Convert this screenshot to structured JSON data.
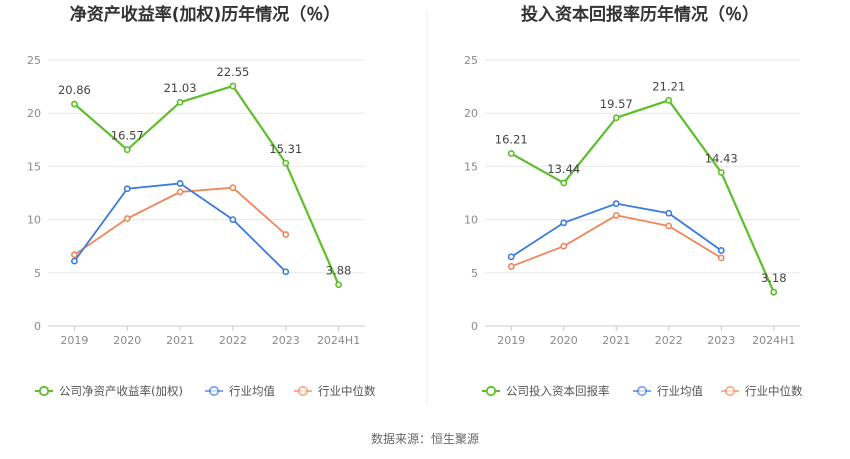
{
  "source_label": "数据来源：恒生聚源",
  "chart_data": [
    {
      "type": "line",
      "title": "净资产收益率(加权)历年情况（％）",
      "categories": [
        "2019",
        "2020",
        "2021",
        "2022",
        "2023",
        "2024H1"
      ],
      "ylim": [
        0,
        25
      ],
      "yticks": [
        0,
        5,
        10,
        15,
        20,
        25
      ],
      "grid": true,
      "legend_position": "bottom",
      "series": [
        {
          "name": "公司净资产收益率(加权)",
          "color": "#5cbf2a",
          "values": [
            20.86,
            16.57,
            21.03,
            22.55,
            15.31,
            3.88
          ],
          "labels": [
            "20.86",
            "16.57",
            "21.03",
            "22.55",
            "15.31",
            "3.88"
          ]
        },
        {
          "name": "行业均值",
          "color": "#3a7be0",
          "values": [
            6.1,
            12.9,
            13.4,
            10.0,
            5.1,
            null
          ]
        },
        {
          "name": "行业中位数",
          "color": "#f0875a",
          "values": [
            6.7,
            10.1,
            12.6,
            13.0,
            8.6,
            null
          ]
        }
      ]
    },
    {
      "type": "line",
      "title": "投入资本回报率历年情况（％）",
      "categories": [
        "2019",
        "2020",
        "2021",
        "2022",
        "2023",
        "2024H1"
      ],
      "ylim": [
        0,
        25
      ],
      "yticks": [
        0,
        5,
        10,
        15,
        20,
        25
      ],
      "grid": true,
      "legend_position": "bottom",
      "series": [
        {
          "name": "公司投入资本回报率",
          "color": "#5cbf2a",
          "values": [
            16.21,
            13.44,
            19.57,
            21.21,
            14.43,
            3.18
          ],
          "labels": [
            "16.21",
            "13.44",
            "19.57",
            "21.21",
            "14.43",
            "3.18"
          ]
        },
        {
          "name": "行业均值",
          "color": "#3a7be0",
          "values": [
            6.5,
            9.7,
            11.5,
            10.6,
            7.1,
            null
          ]
        },
        {
          "name": "行业中位数",
          "color": "#f0875a",
          "values": [
            5.6,
            7.5,
            10.4,
            9.4,
            6.4,
            null
          ]
        }
      ]
    }
  ]
}
